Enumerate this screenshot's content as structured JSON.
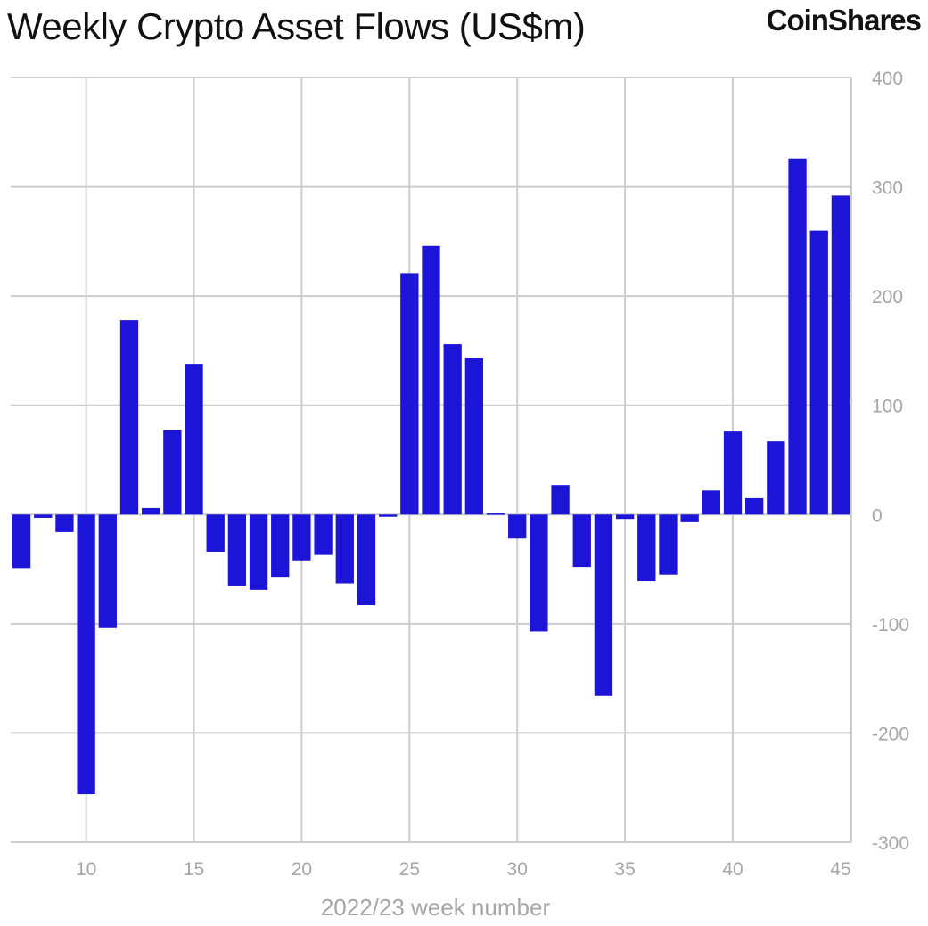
{
  "brand": "CoinShares",
  "colors": {
    "bar": "#1c14d6",
    "grid": "#cccccc",
    "axis_text": "#a6a6a6"
  },
  "chart_data": {
    "type": "bar",
    "title": "Weekly Crypto Asset Flows (US$m)",
    "xlabel": "2022/23 week number",
    "ylabel": "",
    "x": [
      7,
      8,
      9,
      10,
      11,
      12,
      13,
      14,
      15,
      16,
      17,
      18,
      19,
      20,
      21,
      22,
      23,
      24,
      25,
      26,
      27,
      28,
      29,
      30,
      31,
      32,
      33,
      34,
      35,
      36,
      37,
      38,
      39,
      40,
      41,
      42,
      43,
      44,
      45
    ],
    "values": [
      -49,
      -3,
      -16,
      -256,
      -104,
      178,
      6,
      77,
      138,
      -34,
      -65,
      -69,
      -57,
      -42,
      -37,
      -63,
      -83,
      -2,
      221,
      246,
      156,
      143,
      1,
      -22,
      -107,
      27,
      -48,
      -166,
      -4,
      -61,
      -55,
      -7,
      22,
      76,
      15,
      67,
      326,
      260,
      292
    ],
    "xlim": [
      6.5,
      45.5
    ],
    "ylim": [
      -300,
      400
    ],
    "x_ticks": [
      10,
      15,
      20,
      25,
      30,
      35,
      40,
      45
    ],
    "y_ticks": [
      -300,
      -200,
      -100,
      0,
      100,
      200,
      300,
      400
    ],
    "y_axis_side": "right",
    "grid": true
  }
}
